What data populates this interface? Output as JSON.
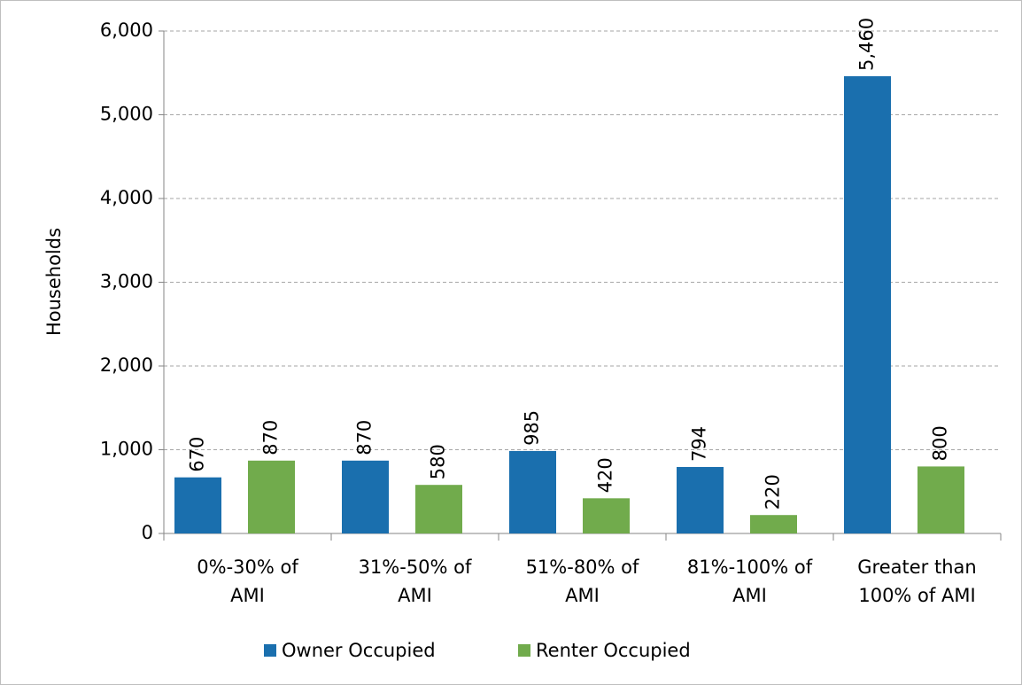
{
  "chart_data": {
    "type": "bar",
    "y_label": "Households",
    "categories": [
      "0%-30% of AMI",
      "31%-50% of AMI",
      "51%-80% of AMI",
      "81%-100% of AMI",
      "Greater than 100% of AMI"
    ],
    "series": [
      {
        "name": "Owner Occupied",
        "color": "#1a6fae",
        "values": [
          670,
          870,
          985,
          794,
          5460
        ],
        "value_labels": [
          "670",
          "870",
          "985",
          "794",
          "5,460"
        ]
      },
      {
        "name": "Renter Occupied",
        "color": "#71ab4c",
        "values": [
          870,
          580,
          420,
          220,
          800
        ],
        "value_labels": [
          "870",
          "580",
          "420",
          "220",
          "800"
        ]
      }
    ],
    "ylim": [
      0,
      6000
    ],
    "yticks": [
      0,
      {
        "value": 1000,
        "label": "1,000"
      },
      {
        "value": 2000,
        "label": "2,000"
      },
      {
        "value": 3000,
        "label": "3,000"
      },
      {
        "value": 4000,
        "label": "4,000"
      },
      {
        "value": 5000,
        "label": "5,000"
      },
      {
        "value": 6000,
        "label": "6,000"
      }
    ],
    "grid": true,
    "legend": "bottom"
  }
}
